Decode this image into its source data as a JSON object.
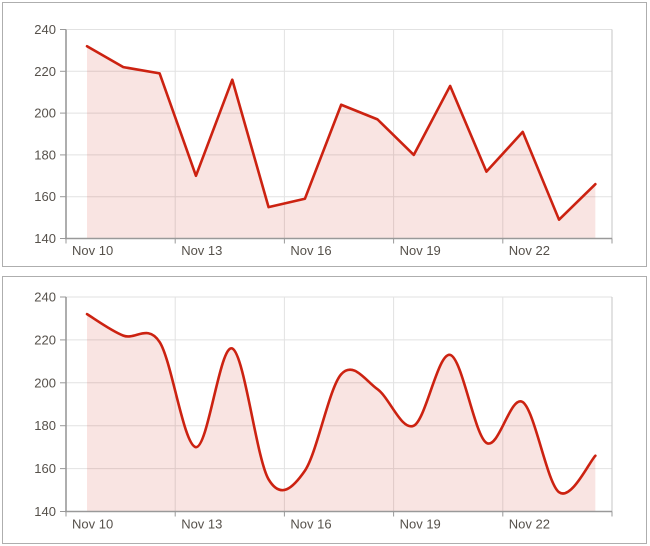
{
  "theme": {
    "background": "#ffffff",
    "panel_border": "#aeaeae",
    "grid_color": "#e2e2e2",
    "axis_color": "#999999",
    "plot_border_color": "#c6c6c6",
    "label_color": "#56514b"
  },
  "chart_data": [
    {
      "type": "area",
      "interpolation": "linear",
      "title": "",
      "xlabel": "",
      "ylabel": "",
      "categories": [
        "Nov 10",
        "Nov 11",
        "Nov 12",
        "Nov 13",
        "Nov 14",
        "Nov 15",
        "Nov 16",
        "Nov 17",
        "Nov 18",
        "Nov 19",
        "Nov 20",
        "Nov 21",
        "Nov 22",
        "Nov 23",
        "Nov 24"
      ],
      "values": [
        232,
        222,
        219,
        170,
        216,
        155,
        159,
        204,
        197,
        180,
        213,
        172,
        191,
        149,
        166
      ],
      "x_tick_labels": [
        "Nov 10",
        "Nov 13",
        "Nov 16",
        "Nov 19",
        "Nov 22"
      ],
      "yticks": [
        140,
        160,
        180,
        200,
        220,
        240
      ],
      "ylim": [
        140,
        240
      ],
      "grid": true,
      "legend": "none",
      "line_color": "#cc2211",
      "fill_color": "rgba(204,34,17,0.12)"
    },
    {
      "type": "area",
      "interpolation": "smooth",
      "title": "",
      "xlabel": "",
      "ylabel": "",
      "categories": [
        "Nov 10",
        "Nov 11",
        "Nov 12",
        "Nov 13",
        "Nov 14",
        "Nov 15",
        "Nov 16",
        "Nov 17",
        "Nov 18",
        "Nov 19",
        "Nov 20",
        "Nov 21",
        "Nov 22",
        "Nov 23",
        "Nov 24"
      ],
      "values": [
        232,
        222,
        219,
        170,
        216,
        155,
        159,
        204,
        197,
        180,
        213,
        172,
        191,
        149,
        166
      ],
      "x_tick_labels": [
        "Nov 10",
        "Nov 13",
        "Nov 16",
        "Nov 19",
        "Nov 22"
      ],
      "yticks": [
        140,
        160,
        180,
        200,
        220,
        240
      ],
      "ylim": [
        140,
        240
      ],
      "grid": true,
      "legend": "none",
      "line_color": "#cc2211",
      "fill_color": "rgba(204,34,17,0.12)"
    }
  ]
}
